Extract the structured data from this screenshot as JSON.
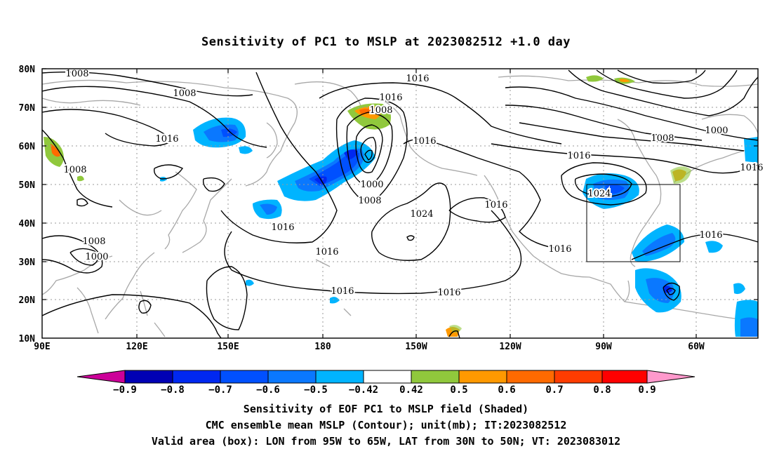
{
  "title": "Sensitivity of PC1 to MSLP at 2023082512 +1.0 day",
  "axes": {
    "lat_labels": [
      "80N",
      "70N",
      "60N",
      "50N",
      "40N",
      "30N",
      "20N",
      "10N"
    ],
    "lon_labels": [
      "90E",
      "120E",
      "150E",
      "180",
      "150W",
      "120W",
      "90W",
      "60W"
    ]
  },
  "contour_labels": {
    "c1008a": "1008",
    "c1008b": "1008",
    "c1008c": "1008",
    "c1008d": "1008",
    "c1008e": "1008",
    "c1008f": "1008",
    "c1008g": "1008",
    "c1016a": "1016",
    "c1016b": "1016",
    "c1016c": "1016",
    "c1016d": "1016",
    "c1016e": "1016",
    "c1016f": "1016",
    "c1016g": "1016",
    "c1016h": "1016",
    "c1016i": "1016",
    "c1016j": "1016",
    "c1016k": "1016",
    "c1016l": "1016",
    "c1016m": "1016",
    "c1000a": "1000",
    "c1000b": "1000",
    "c1000c": "1000",
    "c1024a": "1024",
    "c1024b": "1024"
  },
  "colorbar": {
    "colors": [
      "#cc0099",
      "#0000b4",
      "#0028f0",
      "#0050ff",
      "#0a78ff",
      "#00b4ff",
      "#ffffff",
      "#90c83c",
      "#ff9900",
      "#ff6a00",
      "#ff3c00",
      "#ff0000",
      "#ff99cc"
    ],
    "labels": [
      "−0.9",
      "−0.8",
      "−0.7",
      "−0.6",
      "−0.5",
      "−0.42",
      "0.42",
      "0.5",
      "0.6",
      "0.7",
      "0.8",
      "0.9"
    ]
  },
  "captions": {
    "line1": "Sensitivity of EOF PC1 to MSLP field (Shaded)",
    "line2": "CMC ensemble mean MSLP (Contour); unit(mb); IT:2023082512",
    "line3": "Valid area (box): LON from 95W to 65W, LAT from 30N to 50N; VT: 2023083012"
  }
}
